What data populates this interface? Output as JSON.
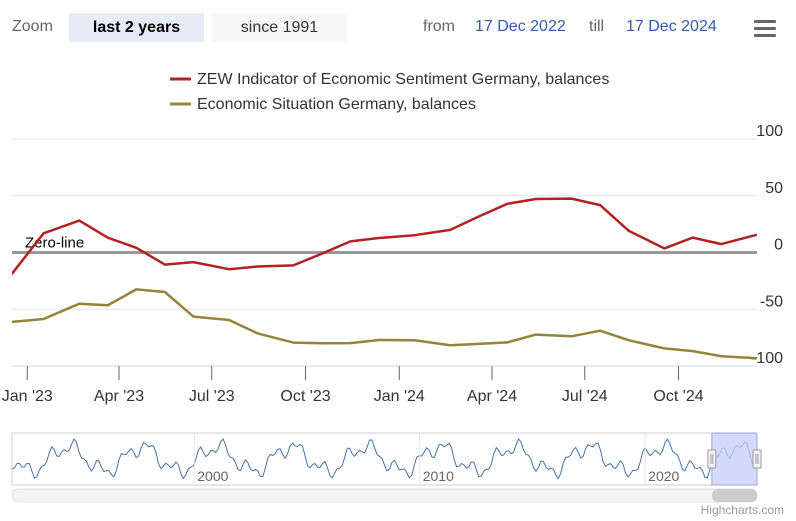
{
  "toolbar": {
    "zoom_label": "Zoom",
    "buttons": [
      {
        "label": "last 2 years",
        "active": true
      },
      {
        "label": "since 1991",
        "active": false
      }
    ],
    "from_label": "from",
    "from_value": "17 Dec 2022",
    "till_label": "till",
    "till_value": "17 Dec 2024",
    "menu_icon": "hamburger-menu-icon"
  },
  "credits": "Highcharts.com",
  "colors": {
    "sentiment": "#b22222",
    "situation": "#948338",
    "zero_line": "#999999",
    "navigator_series": "#4572a7",
    "navigator_mask": "#c5ccf7"
  },
  "chart_data": {
    "type": "line",
    "title": "",
    "legend": [
      "ZEW Indicator of Economic Sentiment Germany, balances",
      "Economic Situation Germany, balances"
    ],
    "y_axis": {
      "min": -100,
      "max": 100,
      "ticks": [
        100,
        50,
        0,
        -50,
        -100
      ],
      "tick_labels": [
        "100",
        "50",
        "0",
        "-50",
        "-100"
      ]
    },
    "x_axis": {
      "min": "2022-12-17",
      "max": "2024-12-17",
      "tick_labels": [
        "Jan '23",
        "Apr '23",
        "Jul '23",
        "Oct '23",
        "Jan '24",
        "Apr '24",
        "Jul '24",
        "Oct '24"
      ],
      "tick_dates": [
        "2023-01-01",
        "2023-04-01",
        "2023-07-01",
        "2023-10-01",
        "2024-01-01",
        "2024-04-01",
        "2024-07-01",
        "2024-10-01"
      ]
    },
    "plot_line": {
      "value": 0,
      "label": "Zero-line"
    },
    "series": [
      {
        "name": "ZEW Indicator of Economic Sentiment Germany, balances",
        "dates": [
          "2022-12-13",
          "2023-01-17",
          "2023-02-21",
          "2023-03-21",
          "2023-04-18",
          "2023-05-16",
          "2023-06-13",
          "2023-07-18",
          "2023-08-15",
          "2023-09-19",
          "2023-10-17",
          "2023-11-14",
          "2023-12-12",
          "2024-01-16",
          "2024-02-20",
          "2024-03-19",
          "2024-04-16",
          "2024-05-14",
          "2024-06-18",
          "2024-07-16",
          "2024-08-13",
          "2024-09-17",
          "2024-10-15",
          "2024-11-12",
          "2024-12-17"
        ],
        "values": [
          -23.3,
          16.9,
          28.1,
          13.0,
          4.1,
          -10.7,
          -8.5,
          -14.7,
          -12.3,
          -11.4,
          -1.1,
          9.8,
          12.8,
          15.2,
          19.9,
          31.7,
          42.9,
          47.1,
          47.5,
          41.8,
          19.2,
          3.6,
          13.1,
          7.4,
          15.7
        ]
      },
      {
        "name": "Economic Situation Germany, balances",
        "dates": [
          "2022-12-13",
          "2023-01-17",
          "2023-02-21",
          "2023-03-21",
          "2023-04-18",
          "2023-05-16",
          "2023-06-13",
          "2023-07-18",
          "2023-08-15",
          "2023-09-19",
          "2023-10-17",
          "2023-11-14",
          "2023-12-12",
          "2024-01-16",
          "2024-02-20",
          "2024-03-19",
          "2024-04-16",
          "2024-05-14",
          "2024-06-18",
          "2024-07-16",
          "2024-08-13",
          "2024-09-17",
          "2024-10-15",
          "2024-11-12",
          "2024-12-17"
        ],
        "values": [
          -61.4,
          -58.6,
          -45.1,
          -46.5,
          -32.5,
          -34.8,
          -56.5,
          -59.5,
          -71.3,
          -79.4,
          -79.9,
          -79.8,
          -77.1,
          -77.3,
          -81.7,
          -80.5,
          -79.2,
          -72.3,
          -73.8,
          -68.9,
          -77.3,
          -84.5,
          -86.9,
          -91.4,
          -93.1
        ]
      }
    ],
    "navigator": {
      "year_labels": [
        "2000",
        "2010",
        "2020"
      ],
      "year_dates": [
        "2000-01-01",
        "2010-01-01",
        "2020-01-01"
      ],
      "range_start": "1991-12-01",
      "range_end": "2024-12-17"
    }
  }
}
